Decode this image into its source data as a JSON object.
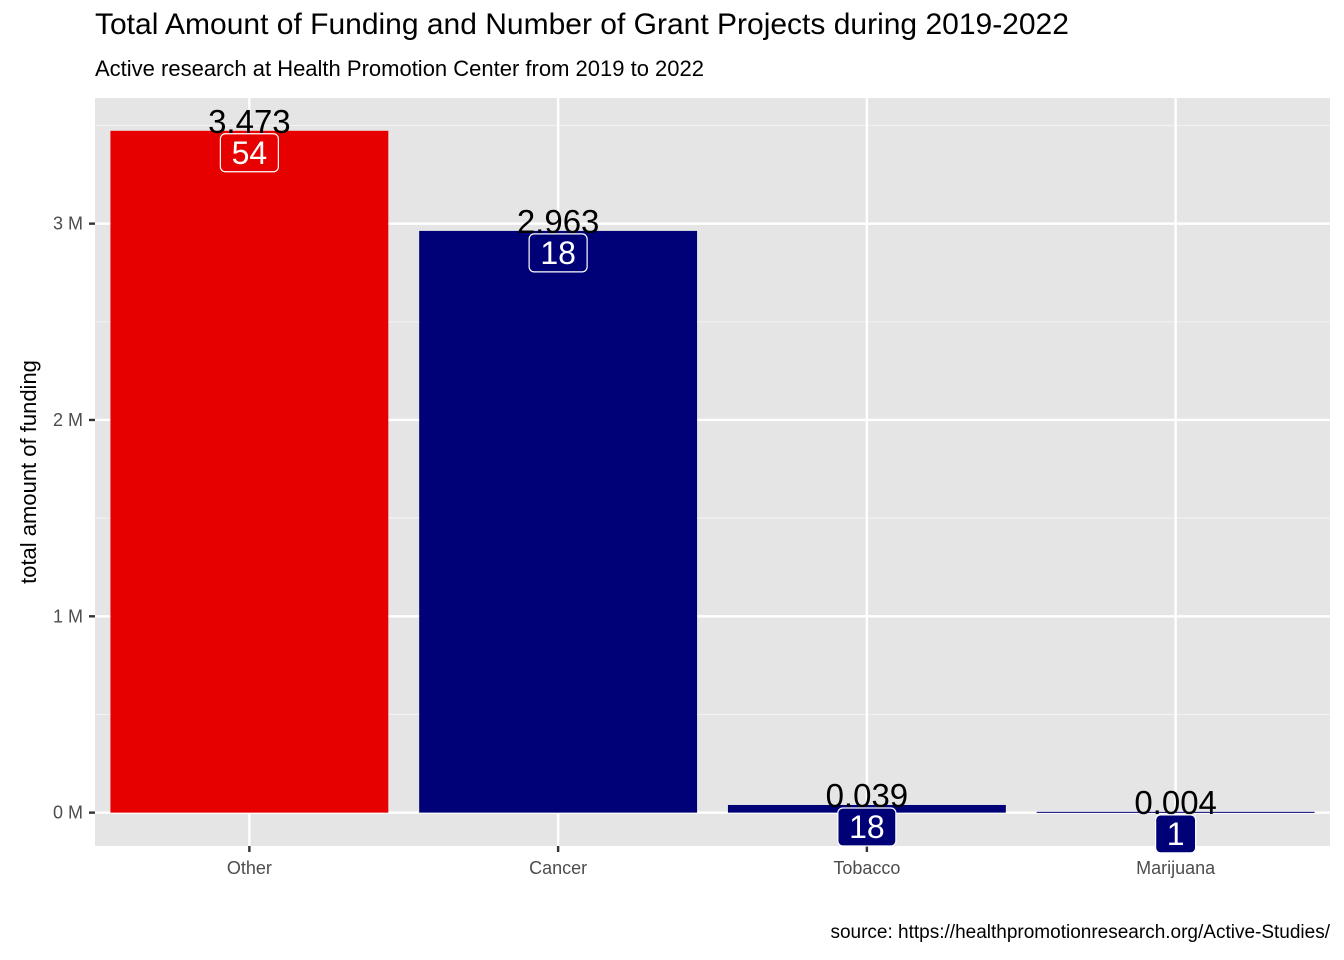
{
  "chart_data": {
    "type": "bar",
    "title": "Total Amount of Funding and Number of Grant Projects during 2019-2022",
    "subtitle": "Active research at Health Promotion Center from 2019 to 2022",
    "caption": "source: https://healthpromotionresearch.org/Active-Studies/",
    "xlabel": "",
    "ylabel": "total amount of funding",
    "categories": [
      "Other",
      "Cancer",
      "Tobacco",
      "Marijuana"
    ],
    "values": [
      3473000,
      2963000,
      39000,
      4000
    ],
    "value_labels": [
      "3.473",
      "2.963",
      "0.039",
      "0.004"
    ],
    "counts": [
      "54",
      "18",
      "18",
      "1"
    ],
    "bar_colors": [
      "#E60000",
      "#000077",
      "#000077",
      "#000077"
    ],
    "ylim": [
      -170000,
      3640000
    ],
    "yticks": [
      0,
      1000000,
      2000000,
      3000000
    ],
    "ytick_labels": [
      "0 M",
      "1 M",
      "2 M",
      "3 M"
    ],
    "grid": true,
    "panel_color": "#E5E5E5",
    "legend": "none"
  }
}
